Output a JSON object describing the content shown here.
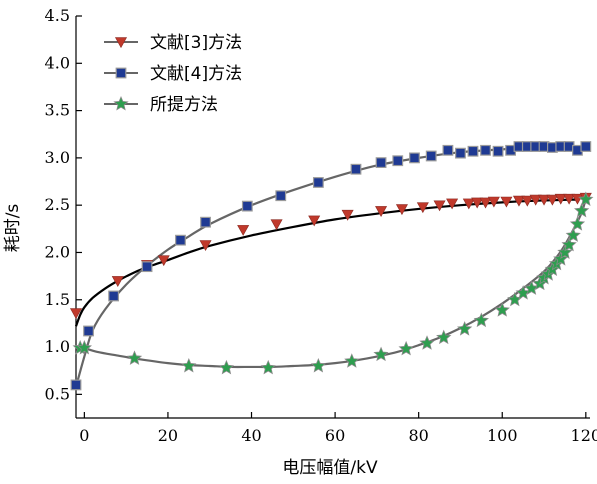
{
  "chart_data": {
    "type": "line",
    "xlabel": "电压幅值/kV",
    "ylabel": "耗时/s",
    "xlim": [
      -2,
      121
    ],
    "ylim": [
      0.25,
      4.5
    ],
    "xticks": [
      0,
      20,
      40,
      60,
      80,
      100,
      120
    ],
    "yticks": [
      0.5,
      1.0,
      1.5,
      2.0,
      2.5,
      3.0,
      3.5,
      4.0,
      4.5
    ],
    "xtick_labels": [
      "0",
      "20",
      "40",
      "60",
      "80",
      "100",
      "120"
    ],
    "ytick_labels": [
      "0.5",
      "1.0",
      "1.5",
      "2.0",
      "2.5",
      "3.0",
      "3.5",
      "4.0",
      "4.5"
    ],
    "legend_position": "top-left",
    "series": [
      {
        "name": "文献[3]方法",
        "marker": "triangle-down",
        "color": "#c0392b",
        "line_color": "#000000",
        "curve": {
          "x": [
            -2,
            -1,
            0,
            2,
            5,
            8,
            12,
            16,
            20,
            25,
            30,
            40,
            50,
            60,
            70,
            80,
            90,
            100,
            110,
            118
          ],
          "y": [
            1.22,
            1.34,
            1.42,
            1.52,
            1.62,
            1.7,
            1.79,
            1.86,
            1.92,
            2.0,
            2.07,
            2.18,
            2.27,
            2.35,
            2.41,
            2.46,
            2.5,
            2.53,
            2.55,
            2.56
          ]
        },
        "markers": {
          "x": [
            -2,
            8,
            15,
            19,
            29,
            38,
            46,
            55,
            63,
            71,
            76,
            81,
            85,
            88,
            92,
            94,
            96,
            98,
            101,
            104,
            106,
            108,
            110,
            112,
            114,
            116,
            118,
            120
          ],
          "y": [
            1.36,
            1.7,
            1.87,
            1.92,
            2.08,
            2.24,
            2.3,
            2.34,
            2.4,
            2.44,
            2.46,
            2.48,
            2.5,
            2.52,
            2.52,
            2.53,
            2.53,
            2.54,
            2.54,
            2.55,
            2.55,
            2.56,
            2.56,
            2.56,
            2.57,
            2.57,
            2.57,
            2.58
          ]
        }
      },
      {
        "name": "文献[4]方法",
        "marker": "square",
        "color": "#1f3a93",
        "line_color": "#666666",
        "curve": {
          "x": [
            -2,
            0,
            2,
            5,
            10,
            15,
            20,
            25,
            30,
            40,
            50,
            60,
            70,
            80,
            90,
            100,
            110,
            118
          ],
          "y": [
            0.58,
            0.9,
            1.18,
            1.4,
            1.66,
            1.86,
            2.03,
            2.17,
            2.3,
            2.5,
            2.66,
            2.8,
            2.92,
            3.0,
            3.06,
            3.09,
            3.11,
            3.12
          ]
        },
        "markers": {
          "x": [
            -2,
            1,
            7,
            15,
            23,
            29,
            39,
            47,
            56,
            65,
            71,
            75,
            79,
            83,
            87,
            90,
            93,
            96,
            99,
            102,
            104,
            106,
            108,
            110,
            112,
            114,
            116,
            118,
            120
          ],
          "y": [
            0.6,
            1.17,
            1.54,
            1.85,
            2.13,
            2.32,
            2.49,
            2.6,
            2.74,
            2.88,
            2.95,
            2.97,
            3.0,
            3.02,
            3.08,
            3.05,
            3.07,
            3.08,
            3.07,
            3.08,
            3.12,
            3.12,
            3.12,
            3.12,
            3.11,
            3.12,
            3.12,
            3.08,
            3.12
          ]
        }
      },
      {
        "name": "所提方法",
        "marker": "star",
        "color": "#2e9e4f",
        "line_color": "#666666",
        "curve": {
          "x": [
            -1,
            0,
            3,
            8,
            12,
            20,
            25,
            30,
            35,
            40,
            45,
            50,
            55,
            60,
            65,
            70,
            75,
            80,
            85,
            90,
            95,
            100,
            105,
            110,
            113,
            115,
            117,
            119,
            120
          ],
          "y": [
            1.0,
            0.99,
            0.95,
            0.91,
            0.88,
            0.83,
            0.81,
            0.8,
            0.79,
            0.79,
            0.79,
            0.8,
            0.81,
            0.83,
            0.86,
            0.9,
            0.95,
            1.02,
            1.1,
            1.2,
            1.32,
            1.46,
            1.62,
            1.8,
            1.95,
            2.08,
            2.24,
            2.42,
            2.57
          ]
        },
        "markers": {
          "x": [
            -1,
            0,
            12,
            25,
            34,
            44,
            56,
            64,
            71,
            77,
            82,
            86,
            91,
            95,
            100,
            103,
            105,
            107,
            109,
            110,
            111,
            112,
            113,
            114,
            115,
            116,
            117,
            118,
            119,
            120
          ],
          "y": [
            0.99,
            0.99,
            0.88,
            0.8,
            0.78,
            0.78,
            0.8,
            0.85,
            0.92,
            0.98,
            1.04,
            1.1,
            1.19,
            1.28,
            1.39,
            1.5,
            1.57,
            1.62,
            1.67,
            1.73,
            1.77,
            1.82,
            1.88,
            1.93,
            2.0,
            2.08,
            2.18,
            2.3,
            2.44,
            2.56
          ]
        }
      }
    ]
  }
}
